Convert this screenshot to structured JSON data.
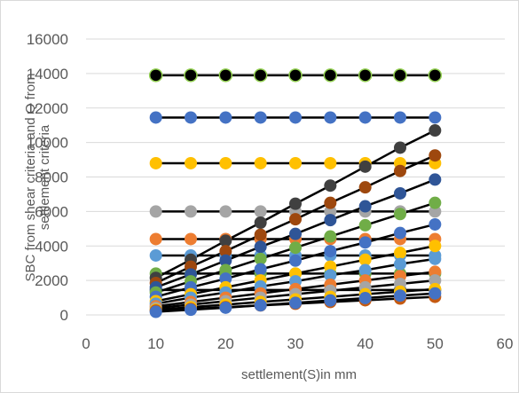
{
  "chart_data": {
    "type": "scatter",
    "title": "",
    "xlabel": "settlement(S)in mm",
    "ylabel_lines": [
      "SBC from shear criteria and Q from",
      "settlement criteria"
    ],
    "xlim": [
      0,
      60
    ],
    "ylim": [
      0,
      16000
    ],
    "x_ticks": [
      0,
      10,
      20,
      30,
      40,
      50,
      60
    ],
    "y_ticks": [
      0,
      2000,
      4000,
      6000,
      8000,
      10000,
      12000,
      14000,
      16000
    ],
    "x_tick_labels": [
      "0",
      "10",
      "20",
      "30",
      "40",
      "50",
      "60"
    ],
    "y_tick_labels": [
      "0",
      "2000",
      "4000",
      "6000",
      "8000",
      "10000",
      "12000",
      "14000",
      "16000"
    ],
    "grid": {
      "horizontal": true,
      "vertical": false
    },
    "legend": "none",
    "x": [
      10,
      15,
      20,
      25,
      30,
      35,
      40,
      45,
      50
    ],
    "series": [
      {
        "color": "#000000",
        "line_color": "#000000",
        "marker_color": "#000000",
        "marker_edge": "#92d050",
        "values": [
          13900,
          13900,
          13900,
          13900,
          13900,
          13900,
          13900,
          13900,
          13900
        ]
      },
      {
        "color": "#4472c4",
        "line_color": "#000000",
        "marker_color": "#4472c4",
        "values": [
          11450,
          11450,
          11450,
          11450,
          11450,
          11450,
          11450,
          11450,
          11450
        ]
      },
      {
        "color": "#ffc000",
        "line_color": "#000000",
        "marker_color": "#ffc000",
        "values": [
          8800,
          8800,
          8800,
          8800,
          8800,
          8800,
          8800,
          8800,
          8800
        ]
      },
      {
        "color": "#a5a5a5",
        "line_color": "#000000",
        "marker_color": "#a5a5a5",
        "values": [
          6000,
          6000,
          6000,
          6000,
          6000,
          6000,
          6000,
          6000,
          6000
        ]
      },
      {
        "color": "#ed7d31",
        "line_color": "#000000",
        "marker_color": "#ed7d31",
        "values": [
          4400,
          4400,
          4400,
          4400,
          4400,
          4400,
          4400,
          4400,
          4400
        ]
      },
      {
        "color": "#5b9bd5",
        "line_color": "#000000",
        "marker_color": "#5b9bd5",
        "values": [
          3450,
          3450,
          3450,
          3450,
          3450,
          3450,
          3450,
          3450,
          3450
        ]
      },
      {
        "color": "#70ad47",
        "line_color": "#000000",
        "marker_color": "#70ad47",
        "values": [
          2400,
          2400,
          2400,
          2400,
          2400,
          2400,
          2400,
          2400,
          2400
        ]
      },
      {
        "color": "#264478",
        "line_color": "#000000",
        "marker_color": "#264478",
        "values": [
          1450,
          1450,
          1450,
          1450,
          1450,
          1450,
          1450,
          1450,
          1450
        ]
      },
      {
        "color": "#404040",
        "line_color": "#000000",
        "marker_color": "#404040",
        "values": [
          2150,
          3200,
          4300,
          5350,
          6450,
          7500,
          8600,
          9700,
          10700
        ]
      },
      {
        "color": "#9e480e",
        "line_color": "#000000",
        "marker_color": "#9e480e",
        "values": [
          1850,
          2800,
          3700,
          4650,
          5550,
          6500,
          7400,
          8350,
          9250
        ]
      },
      {
        "color": "#2f5597",
        "line_color": "#000000",
        "marker_color": "#2f5597",
        "values": [
          1600,
          2350,
          3150,
          3950,
          4700,
          5500,
          6300,
          7050,
          7850
        ]
      },
      {
        "color": "#70ad47",
        "line_color": "#000000",
        "marker_color": "#70ad47",
        "values": [
          1300,
          1950,
          2600,
          3250,
          3900,
          4550,
          5200,
          5850,
          6500
        ]
      },
      {
        "color": "#4472c4",
        "line_color": "#000000",
        "marker_color": "#4472c4",
        "values": [
          1050,
          1600,
          2100,
          2650,
          3150,
          3700,
          4200,
          4750,
          5250
        ]
      },
      {
        "color": "#ffc000",
        "line_color": "#000000",
        "marker_color": "#ffc000",
        "values": [
          800,
          1200,
          1600,
          2000,
          2400,
          2800,
          3200,
          3600,
          4000
        ]
      },
      {
        "color": "#5b9bd5",
        "line_color": "#000000",
        "marker_color": "#5b9bd5",
        "values": [
          650,
          1000,
          1300,
          1650,
          1950,
          2300,
          2600,
          2950,
          3250
        ]
      },
      {
        "color": "#ed7d31",
        "line_color": "#000000",
        "marker_color": "#ed7d31",
        "values": [
          500,
          750,
          1000,
          1250,
          1500,
          1750,
          2000,
          2250,
          2500
        ]
      },
      {
        "color": "#a5a5a5",
        "line_color": "#000000",
        "marker_color": "#a5a5a5",
        "values": [
          400,
          600,
          800,
          1000,
          1200,
          1400,
          1600,
          1800,
          2000
        ]
      },
      {
        "color": "#ffc000",
        "line_color": "#000000",
        "marker_color": "#ffc000",
        "values": [
          300,
          450,
          600,
          750,
          900,
          1050,
          1200,
          1350,
          1500
        ]
      },
      {
        "color": "#c55a11",
        "line_color": "#000000",
        "marker_color": "#c55a11",
        "values": [
          250,
          350,
          450,
          550,
          650,
          750,
          850,
          950,
          1050
        ]
      },
      {
        "color": "#4472c4",
        "line_color": "#000000",
        "marker_color": "#4472c4",
        "values": [
          180,
          300,
          420,
          560,
          700,
          840,
          980,
          1120,
          1250
        ]
      }
    ]
  }
}
